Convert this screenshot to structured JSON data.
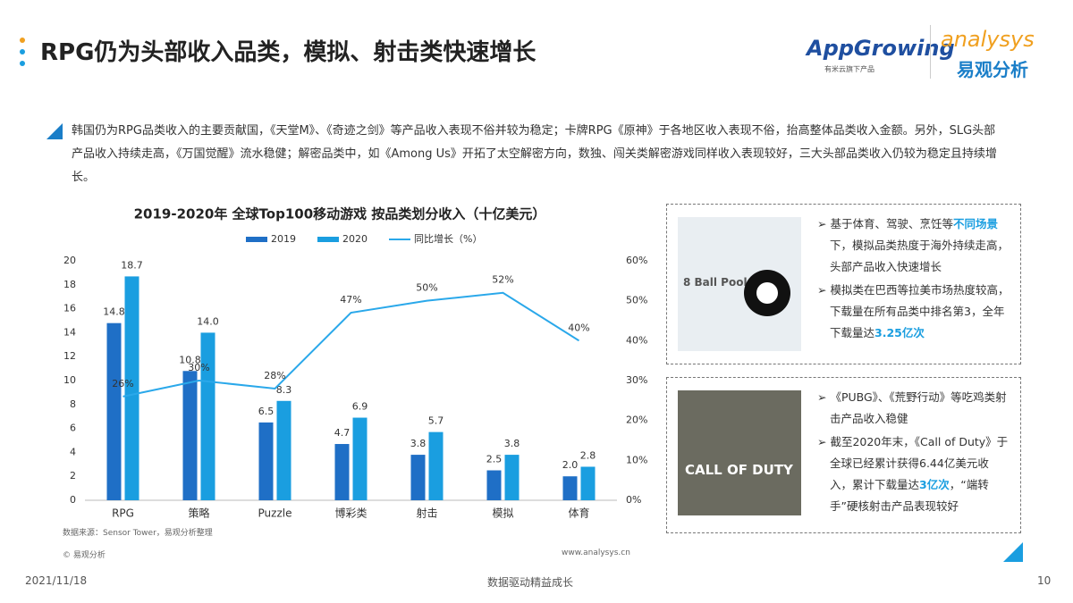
{
  "header": {
    "title": "RPG仍为头部收入品类，模拟、射击类快速增长",
    "logo_left": "AppGrowing",
    "logo_left_sub": "有米云旗下产品",
    "logo_right": "analysys",
    "logo_right_sub": "易观分析"
  },
  "summary": "韩国仍为RPG品类收入的主要贡献国，《天堂M》、《奇迹之剑》等产品收入表现不俗并较为稳定；卡牌RPG《原神》于各地区收入表现不俗，抬高整体品类收入金额。另外，SLG头部产品收入持续走高，《万国觉醒》流水稳健；解密品类中，如《Among Us》开拓了太空解密方向，数独、闯关类解密游戏同样收入表现较好，三大头部品类收入仍较为稳定且持续增长。",
  "chart_data": {
    "type": "bar",
    "title": "2019-2020年 全球Top100移动游戏 按品类划分收入（十亿美元）",
    "categories": [
      "RPG",
      "策略",
      "Puzzle",
      "博彩类",
      "射击",
      "模拟",
      "体育"
    ],
    "series": [
      {
        "name": "2019",
        "color": "#1f6fc6",
        "values": [
          14.8,
          10.8,
          6.5,
          4.7,
          3.8,
          2.5,
          2.0
        ],
        "value_labels": [
          "14.8",
          "10.8",
          "6.5",
          "4.7",
          "3.8",
          "2.5",
          "2.0"
        ]
      },
      {
        "name": "2020",
        "color": "#1a9ee0",
        "values": [
          18.7,
          14.0,
          8.3,
          6.9,
          5.7,
          3.8,
          2.8
        ],
        "value_labels": [
          "18.7",
          "14.0",
          "8.3",
          "6.9",
          "5.7",
          "3.8",
          "2.8"
        ]
      },
      {
        "name": "同比增长（%）",
        "type": "line",
        "axis": "y2",
        "color": "#2aa8ea",
        "values": [
          26,
          30,
          28,
          47,
          50,
          52,
          40
        ],
        "value_labels": [
          "26%",
          "30%",
          "28%",
          "47%",
          "50%",
          "52%",
          "40%"
        ]
      }
    ],
    "ylim": [
      0,
      20
    ],
    "yticks": [
      0,
      2,
      4,
      6,
      8,
      10,
      12,
      14,
      16,
      18,
      20
    ],
    "y2lim": [
      0,
      60
    ],
    "y2ticks": [
      {
        "value": 0,
        "label": "0%"
      },
      {
        "value": 10,
        "label": "10%"
      },
      {
        "value": 20,
        "label": "20%"
      },
      {
        "value": 30,
        "label": "30%"
      },
      {
        "value": 40,
        "label": "40%"
      },
      {
        "value": 50,
        "label": "50%"
      },
      {
        "value": 60,
        "label": "60%"
      }
    ],
    "grid": false,
    "source": "数据来源：Sensor Tower，易观分析整理",
    "copyright": "© 易观分析",
    "website": "www.analysys.cn"
  },
  "panels": [
    {
      "image_text": "8 Ball Pool",
      "bullets": [
        [
          "➢ 基于体育、驾驶、烹饪等",
          "不同场景",
          "下，模拟品类热度于海外持续走高，头部产品收入快速增长"
        ],
        [
          "➢ 模拟类在巴西等拉美市场热度较高，下载量在所有品类中排名第3，全年下载量达",
          "3.25亿次"
        ]
      ]
    },
    {
      "image_text": "CALL OF DUTY",
      "bullets": [
        [
          "➢ 《PUBG》、《荒野行动》等吃鸡类射击产品收入稳健"
        ],
        [
          "➢ 截至2020年末，《Call of Duty》于全球已经累计获得6.44亿美元收入，累计下载量达",
          "3亿次",
          "，“端转手”硬核射击产品表现较好"
        ]
      ]
    }
  ],
  "footer": {
    "date": "2021/11/18",
    "slogan": "数据驱动精益成长",
    "page": "10"
  }
}
